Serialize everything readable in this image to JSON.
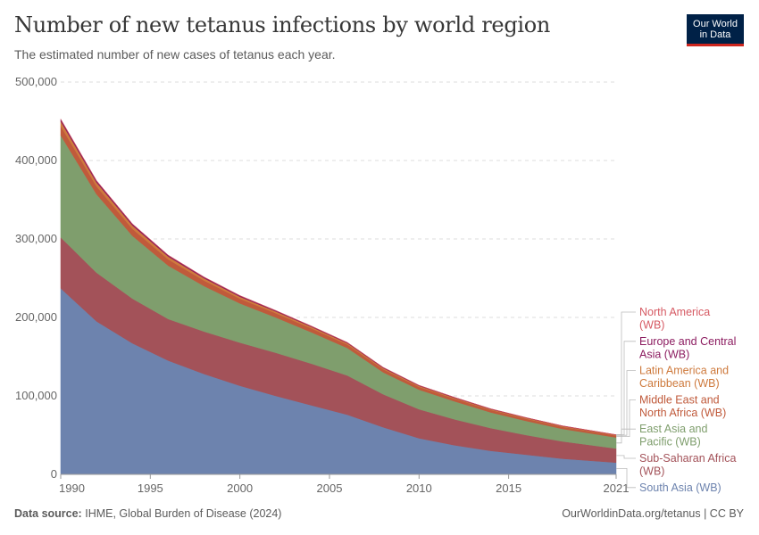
{
  "header": {
    "title": "Number of new tetanus infections by world region",
    "subtitle": "The estimated number of new cases of tetanus each year.",
    "logo_line1": "Our World",
    "logo_line2": "in Data"
  },
  "footer": {
    "source_label": "Data source:",
    "source_text": "IHME, Global Burden of Disease (2024)",
    "link_text": "OurWorldinData.org/tetanus | CC BY"
  },
  "chart_data": {
    "type": "area",
    "stacked": true,
    "title": "Number of new tetanus infections by world region",
    "subtitle": "The estimated number of new cases of tetanus each year.",
    "ylim": [
      0,
      500000
    ],
    "xlim": [
      1990,
      2021
    ],
    "y_ticks": [
      0,
      100000,
      200000,
      300000,
      400000,
      500000
    ],
    "y_tick_labels": [
      "0",
      "100,000",
      "200,000",
      "300,000",
      "400,000",
      "500,000"
    ],
    "x_ticks": [
      1990,
      1995,
      2000,
      2005,
      2010,
      2015,
      2021
    ],
    "x_tick_labels": [
      "1990",
      "1995",
      "2000",
      "2005",
      "2010",
      "2015",
      "2021"
    ],
    "grid": "horizontal dashed",
    "legend_placement": "right",
    "x": [
      1990,
      1992,
      1994,
      1996,
      1998,
      2000,
      2002,
      2004,
      2006,
      2008,
      2010,
      2012,
      2014,
      2016,
      2018,
      2021
    ],
    "series": [
      {
        "name": "South Asia (WB)",
        "label_lines": [
          "South Asia (WB)"
        ],
        "color": "#6d83ae",
        "values": [
          237000,
          195000,
          167000,
          145000,
          128000,
          113000,
          100000,
          88000,
          76000,
          60000,
          46000,
          37000,
          30000,
          25000,
          20000,
          15000
        ]
      },
      {
        "name": "Sub-Saharan Africa (WB)",
        "label_lines": [
          "Sub-Saharan Africa",
          "(WB)"
        ],
        "color": "#a35259",
        "values": [
          65000,
          62000,
          57000,
          53000,
          54000,
          55000,
          55000,
          53000,
          50000,
          42000,
          37000,
          33000,
          29000,
          25000,
          22000,
          18000
        ]
      },
      {
        "name": "East Asia and Pacific (WB)",
        "label_lines": [
          "East Asia and",
          "Pacific (WB)"
        ],
        "color": "#7f9e6d",
        "values": [
          130000,
          100000,
          80000,
          68000,
          58000,
          50000,
          45000,
          40000,
          35000,
          28000,
          25000,
          23000,
          20000,
          18000,
          16000,
          14000
        ]
      },
      {
        "name": "Middle East and North Africa (WB)",
        "label_lines": [
          "Middle East and",
          "North Africa (WB)"
        ],
        "color": "#c05a3b",
        "values": [
          12000,
          10000,
          9000,
          8000,
          7000,
          6000,
          5500,
          5000,
          4500,
          4000,
          3500,
          3200,
          3000,
          2800,
          2600,
          2400
        ]
      },
      {
        "name": "Latin America and Caribbean (WB)",
        "label_lines": [
          "Latin America and",
          "Caribbean (WB)"
        ],
        "color": "#ce7a3d",
        "values": [
          6000,
          5000,
          4200,
          3600,
          3000,
          2500,
          2200,
          1900,
          1700,
          1500,
          1300,
          1200,
          1100,
          1000,
          900,
          800
        ]
      },
      {
        "name": "Europe and Central Asia (WB)",
        "label_lines": [
          "Europe and Central",
          "Asia (WB)"
        ],
        "color": "#8c1c60",
        "values": [
          2500,
          2200,
          1900,
          1600,
          1400,
          1200,
          1000,
          900,
          800,
          700,
          600,
          500,
          450,
          400,
          350,
          300
        ]
      },
      {
        "name": "North America (WB)",
        "label_lines": [
          "North America",
          "(WB)"
        ],
        "color": "#d65a63",
        "values": [
          300,
          280,
          260,
          240,
          220,
          200,
          190,
          180,
          170,
          160,
          150,
          140,
          130,
          120,
          110,
          100
        ]
      }
    ]
  }
}
